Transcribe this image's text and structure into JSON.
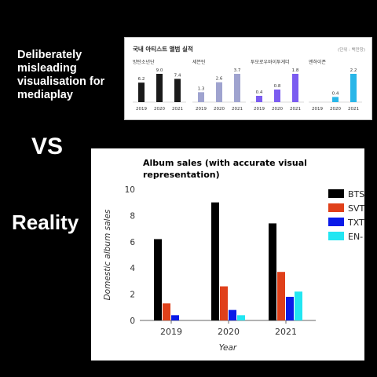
{
  "left_caption": "Deliberately misleading visualisation for mediaplay",
  "vs_text": "VS",
  "reality_text": "Reality",
  "mini_chart": {
    "title": "국내 아티스트 앨범 실적",
    "unit": "(단위 : 백만장)",
    "groups": [
      {
        "name": "방탄소년단",
        "color": "#1a1a1a",
        "x": [
          "2019",
          "2020",
          "2021"
        ],
        "values": [
          6.2,
          9.0,
          7.4
        ],
        "labels": [
          "6.2",
          "9.0",
          "7.4"
        ]
      },
      {
        "name": "세븐틴",
        "color": "#9fa3cf",
        "x": [
          "2019",
          "2020",
          "2021"
        ],
        "values": [
          1.3,
          2.6,
          3.7
        ],
        "labels": [
          "1.3",
          "2.6",
          "3.7"
        ]
      },
      {
        "name": "투모로우바이투게더",
        "color": "#7b5cf0",
        "x": [
          "2019",
          "2020",
          "2021"
        ],
        "values": [
          0.4,
          0.8,
          1.8
        ],
        "labels": [
          "0.4",
          "0.8",
          "1.8"
        ]
      },
      {
        "name": "엔하이픈",
        "color": "#29b6e8",
        "x": [
          "2019",
          "2020",
          "2021"
        ],
        "values": [
          0,
          0.4,
          2.2
        ],
        "labels": [
          "",
          "0.4",
          "2.2"
        ]
      }
    ]
  },
  "chart_data": {
    "type": "bar",
    "title": "Album sales (with accurate visual representation)",
    "title_lines": [
      "Album sales (with accurate visual",
      "representation)"
    ],
    "xlabel": "Year",
    "ylabel": "Domestic album sales",
    "categories": [
      "2019",
      "2020",
      "2021"
    ],
    "yticks": [
      "0",
      "2",
      "4",
      "6",
      "8",
      "10"
    ],
    "ylim": [
      0,
      10
    ],
    "grid": false,
    "legend_position": "right",
    "series": [
      {
        "name": "BTS",
        "color": "#000000",
        "values": [
          6.2,
          9.0,
          7.4
        ]
      },
      {
        "name": "SVT",
        "color": "#e0401a",
        "values": [
          1.3,
          2.6,
          3.7
        ]
      },
      {
        "name": "TXT",
        "color": "#0a1ae8",
        "values": [
          0.4,
          0.8,
          1.8
        ]
      },
      {
        "name": "EN-",
        "color": "#22e6f2",
        "values": [
          0,
          0.4,
          2.2
        ]
      }
    ]
  }
}
